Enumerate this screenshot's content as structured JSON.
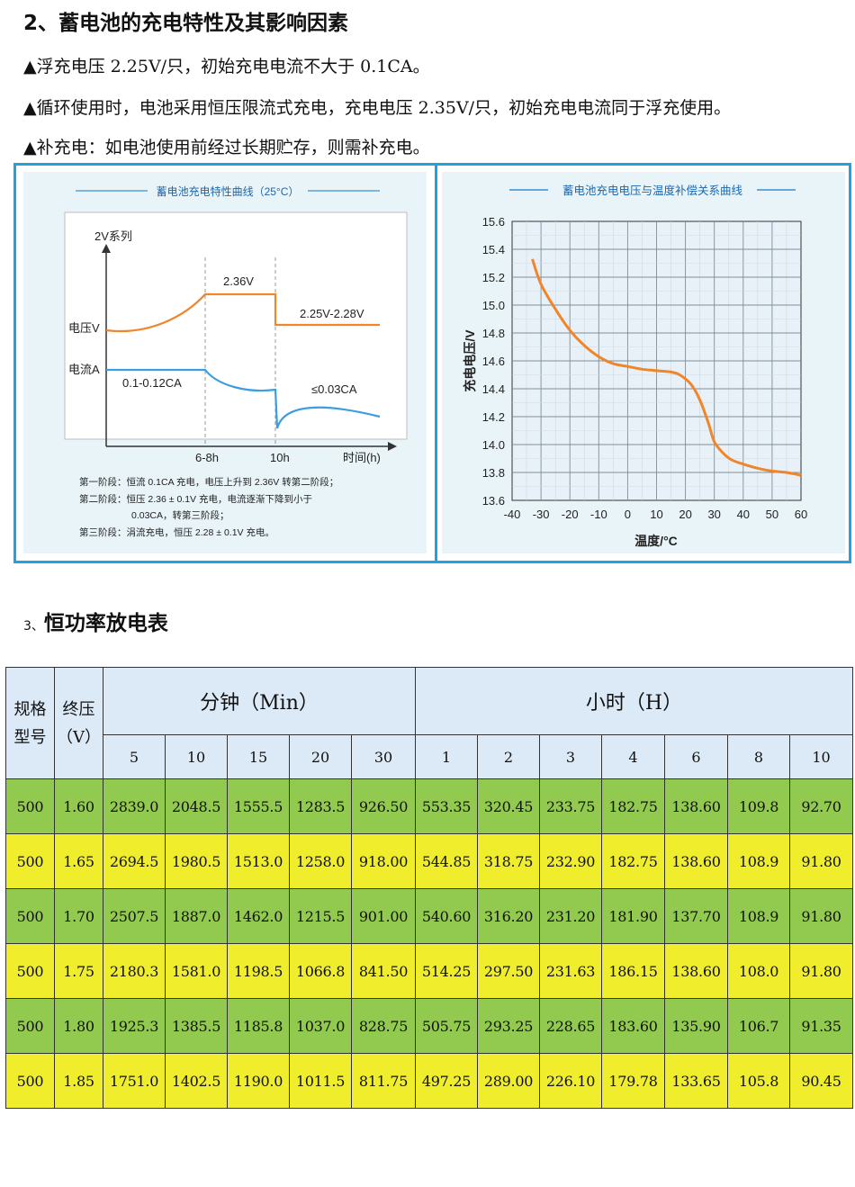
{
  "section2": {
    "title": "2、蓄电池的充电特性及其影响因素",
    "bullets": [
      "▲浮充电压 2.25V/只，初始充电电流不大于 0.1CA。",
      "▲循环使用时，电池采用恒压限流式充电，充电电压 2.35V/只，初始充电电流同于浮充使用。",
      "▲补充电：如电池使用前经过长期贮存，则需补充电。"
    ]
  },
  "charging_chart": {
    "title": "蓄电池充电特性曲线（25°C）",
    "series_label": "2V系列",
    "voltage_label": "电压V",
    "current_label": "电流A",
    "v_high": "2.36V",
    "v_float": "2.25V-2.28V",
    "i_start": "0.1-0.12CA",
    "i_end": "≤0.03CA",
    "t1": "6-8h",
    "t2": "10h",
    "xlabel": "时间(h)",
    "notes": [
      "第一阶段：恒流 0.1CA 充电，电压上升到 2.36V 转第二阶段；",
      "第二阶段：恒压 2.36 ± 0.1V 充电，电流逐渐下降到小于",
      "0.03CA，转第三阶段；",
      "第三阶段：涓流充电，恒压 2.28 ± 0.1V 充电。"
    ]
  },
  "chart_data": {
    "type": "line",
    "title": "蓄电池充电电压与温度补偿关系曲线",
    "xlabel": "温度/°C",
    "ylabel": "充电电压/V",
    "xlim": [
      -40,
      60
    ],
    "ylim": [
      13.6,
      15.6
    ],
    "x_ticks": [
      "-40",
      "-30",
      "-20",
      "-10",
      "0",
      "10",
      "20",
      "30",
      "40",
      "50",
      "60"
    ],
    "y_ticks": [
      "15.6",
      "15.4",
      "15.2",
      "15.0",
      "14.8",
      "14.6",
      "14.4",
      "14.2",
      "14.0",
      "13.8",
      "13.6"
    ],
    "grid": true,
    "color": "#f0852a",
    "x": [
      -33,
      -30,
      -25,
      -20,
      -15,
      -10,
      -5,
      0,
      5,
      10,
      15,
      18,
      22,
      25,
      28,
      30,
      33,
      36,
      40,
      45,
      50,
      55,
      60
    ],
    "y": [
      15.33,
      15.15,
      14.97,
      14.82,
      14.71,
      14.63,
      14.58,
      14.56,
      14.54,
      14.53,
      14.52,
      14.5,
      14.43,
      14.32,
      14.15,
      14.02,
      13.94,
      13.89,
      13.86,
      13.83,
      13.81,
      13.8,
      13.78
    ]
  },
  "section3": {
    "prefix": "3、",
    "title": "恒功率放电表"
  },
  "table": {
    "h_spec": "规格\n型号",
    "h_volt": "终压\n（V）",
    "h_min": "分钟（Min）",
    "h_hour": "小时（H）",
    "sub": [
      "5",
      "10",
      "15",
      "20",
      "30",
      "1",
      "2",
      "3",
      "4",
      "6",
      "8",
      "10"
    ],
    "rows": [
      [
        "500",
        "1.60",
        "2839.0",
        "2048.5",
        "1555.5",
        "1283.5",
        "926.50",
        "553.35",
        "320.45",
        "233.75",
        "182.75",
        "138.60",
        "109.8",
        "92.70"
      ],
      [
        "500",
        "1.65",
        "2694.5",
        "1980.5",
        "1513.0",
        "1258.0",
        "918.00",
        "544.85",
        "318.75",
        "232.90",
        "182.75",
        "138.60",
        "108.9",
        "91.80"
      ],
      [
        "500",
        "1.70",
        "2507.5",
        "1887.0",
        "1462.0",
        "1215.5",
        "901.00",
        "540.60",
        "316.20",
        "231.20",
        "181.90",
        "137.70",
        "108.9",
        "91.80"
      ],
      [
        "500",
        "1.75",
        "2180.3",
        "1581.0",
        "1198.5",
        "1066.8",
        "841.50",
        "514.25",
        "297.50",
        "231.63",
        "186.15",
        "138.60",
        "108.0",
        "91.80"
      ],
      [
        "500",
        "1.80",
        "1925.3",
        "1385.5",
        "1185.8",
        "1037.0",
        "828.75",
        "505.75",
        "293.25",
        "228.65",
        "183.60",
        "135.90",
        "106.7",
        "91.35"
      ],
      [
        "500",
        "1.85",
        "1751.0",
        "1402.5",
        "1190.0",
        "1011.5",
        "811.75",
        "497.25",
        "289.00",
        "226.10",
        "179.78",
        "133.65",
        "105.8",
        "90.45"
      ]
    ],
    "row_colors": [
      "#92c94f",
      "#f0ee2c"
    ]
  }
}
